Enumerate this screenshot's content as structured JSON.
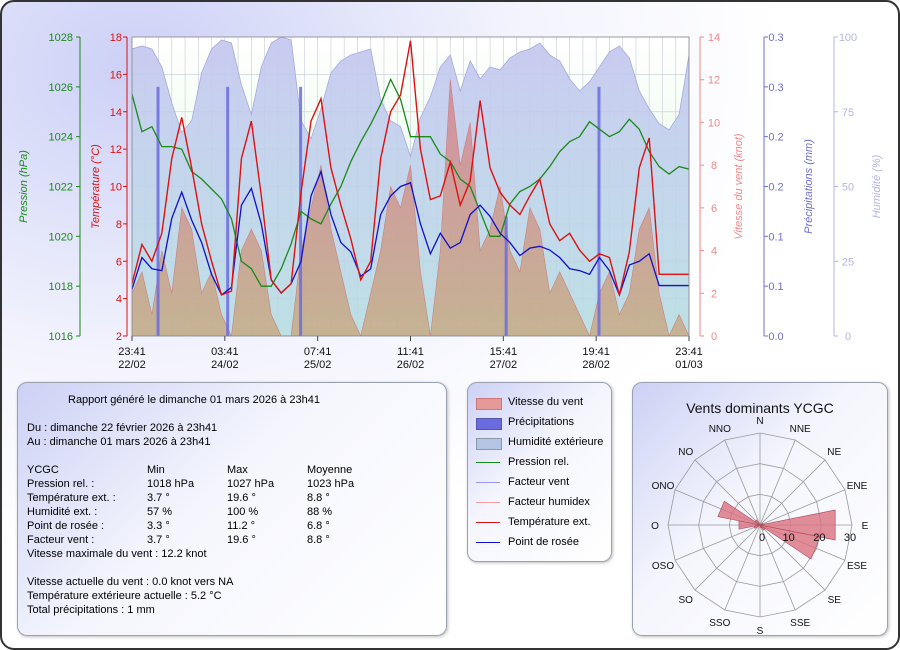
{
  "chart_data": [
    {
      "type": "line",
      "title": "",
      "xlabel": "",
      "time_range_hours": [
        0,
        168
      ],
      "x_ticks": [
        {
          "h": 0,
          "time": "23:41",
          "date": "22/02"
        },
        {
          "h": 28,
          "time": "03:41",
          "date": "24/02"
        },
        {
          "h": 56,
          "time": "07:41",
          "date": "25/02"
        },
        {
          "h": 84,
          "time": "11:41",
          "date": "26/02"
        },
        {
          "h": 112,
          "time": "15:41",
          "date": "27/02"
        },
        {
          "h": 140,
          "time": "19:41",
          "date": "28/02"
        },
        {
          "h": 168,
          "time": "23:41",
          "date": "01/03"
        }
      ],
      "axes": {
        "pressure": {
          "label": "Pression (hPa)",
          "ylim": [
            1016,
            1028
          ],
          "ticks": [
            1016,
            1018,
            1020,
            1022,
            1024,
            1026,
            1028
          ],
          "color": "#1a8a1a"
        },
        "temperature": {
          "label": "Température (°C)",
          "ylim": [
            2,
            18
          ],
          "ticks": [
            2,
            4,
            6,
            8,
            10,
            12,
            14,
            16,
            18
          ],
          "color": "#dd1111"
        },
        "wind": {
          "label": "Vitesse du vent (knot)",
          "ylim": [
            0,
            14
          ],
          "ticks": [
            0,
            2,
            4,
            6,
            8,
            10,
            12,
            14
          ],
          "color": "#ee8888"
        },
        "precip": {
          "label": "Précipitations (mm)",
          "ylim": [
            0,
            0.3
          ],
          "ticks": [
            "0.0",
            "0.1",
            "0.1",
            "0.2",
            "0.2",
            "0.3",
            "0.3"
          ],
          "color": "#6f6fd0"
        },
        "humidity": {
          "label": "Humidité (%)",
          "ylim": [
            0,
            100
          ],
          "ticks": [
            0,
            25,
            50,
            75,
            100
          ],
          "color": "#b4b4e4"
        }
      },
      "series": [
        {
          "name": "Température ext.",
          "axis": "temperature",
          "color": "#dd1111",
          "x": [
            0,
            3,
            6,
            9,
            12,
            15,
            18,
            21,
            24,
            27,
            30,
            33,
            36,
            39,
            42,
            45,
            48,
            51,
            54,
            57,
            60,
            63,
            66,
            69,
            72,
            75,
            78,
            81,
            84,
            87,
            90,
            93,
            96,
            99,
            102,
            105,
            108,
            111,
            114,
            117,
            120,
            123,
            126,
            129,
            132,
            135,
            138,
            141,
            144,
            147,
            150,
            153,
            156,
            159,
            162,
            165,
            168
          ],
          "values": [
            4.8,
            6.9,
            6.0,
            7.5,
            11.5,
            13.7,
            11.0,
            8.0,
            6.0,
            4.2,
            4.4,
            11.5,
            13.5,
            9.5,
            5.0,
            4.3,
            4.8,
            9.7,
            13.5,
            14.7,
            11.0,
            9.0,
            7.2,
            5.0,
            6.0,
            11.5,
            14.0,
            14.9,
            17.8,
            12.0,
            9.3,
            9.5,
            11.3,
            9.0,
            10.3,
            14.6,
            11.0,
            9.7,
            9.0,
            8.5,
            9.5,
            10.4,
            8.0,
            7.1,
            7.5,
            6.6,
            6.0,
            6.4,
            6.2,
            4.2,
            6.5,
            11.0,
            12.6,
            5.3,
            5.3,
            5.3,
            5.3
          ]
        },
        {
          "name": "Point de rosée",
          "axis": "temperature",
          "color": "#1010cc",
          "x": [
            0,
            3,
            6,
            9,
            12,
            15,
            18,
            21,
            24,
            27,
            30,
            33,
            36,
            39,
            42,
            45,
            48,
            51,
            54,
            57,
            60,
            63,
            66,
            69,
            72,
            75,
            78,
            81,
            84,
            87,
            90,
            93,
            96,
            99,
            102,
            105,
            108,
            111,
            114,
            117,
            120,
            123,
            126,
            129,
            132,
            135,
            138,
            141,
            144,
            147,
            150,
            153,
            156,
            159,
            162,
            165,
            168
          ],
          "values": [
            4.5,
            6.2,
            5.6,
            5.5,
            8.3,
            9.7,
            8.2,
            7.0,
            5.3,
            4.2,
            4.6,
            9.0,
            9.9,
            8.0,
            5.0,
            4.3,
            4.8,
            6.0,
            9.5,
            10.8,
            8.5,
            7.0,
            6.5,
            5.2,
            5.6,
            8.5,
            9.5,
            10.0,
            10.2,
            8.0,
            6.4,
            7.5,
            6.7,
            7.0,
            8.5,
            9.0,
            8.4,
            7.5,
            7.0,
            6.3,
            6.7,
            6.8,
            6.6,
            6.2,
            5.6,
            5.5,
            5.3,
            6.2,
            5.5,
            4.2,
            5.8,
            6.0,
            6.4,
            4.7,
            4.7,
            4.7,
            4.7
          ]
        },
        {
          "name": "Pression rel.",
          "axis": "pressure",
          "color": "#1a8a1a",
          "x": [
            0,
            3,
            6,
            9,
            12,
            15,
            18,
            21,
            24,
            27,
            30,
            33,
            36,
            39,
            42,
            45,
            48,
            51,
            54,
            57,
            60,
            63,
            66,
            69,
            72,
            75,
            78,
            81,
            84,
            87,
            90,
            93,
            96,
            99,
            102,
            105,
            108,
            111,
            114,
            117,
            120,
            123,
            126,
            129,
            132,
            135,
            138,
            141,
            144,
            147,
            150,
            153,
            156,
            159,
            162,
            165,
            168
          ],
          "values": [
            1025.7,
            1024.2,
            1024.4,
            1023.6,
            1023.6,
            1023.5,
            1022.6,
            1022.3,
            1021.9,
            1021.5,
            1020.7,
            1019.0,
            1018.7,
            1018.0,
            1018.0,
            1018.7,
            1019.7,
            1021.0,
            1020.7,
            1020.5,
            1021.3,
            1022.0,
            1023.0,
            1023.8,
            1024.5,
            1025.3,
            1026.3,
            1025.5,
            1024.0,
            1024.0,
            1024.0,
            1023.3,
            1023.0,
            1022.3,
            1022.0,
            1021.0,
            1020.0,
            1020.0,
            1021.3,
            1021.8,
            1022.0,
            1022.3,
            1022.8,
            1023.4,
            1023.8,
            1024.0,
            1024.6,
            1024.3,
            1024.0,
            1024.2,
            1024.7,
            1024.3,
            1023.4,
            1022.8,
            1022.5,
            1022.8,
            1022.7
          ]
        },
        {
          "name": "Humidité extérieure",
          "axis": "humidity",
          "color": "#b4b4e4",
          "x": [
            0,
            3,
            6,
            9,
            12,
            15,
            18,
            21,
            24,
            27,
            30,
            33,
            36,
            39,
            42,
            45,
            48,
            51,
            54,
            57,
            60,
            63,
            66,
            69,
            72,
            75,
            78,
            81,
            84,
            87,
            90,
            93,
            96,
            99,
            102,
            105,
            108,
            111,
            114,
            117,
            120,
            123,
            126,
            129,
            132,
            135,
            138,
            141,
            144,
            147,
            150,
            153,
            156,
            159,
            162,
            165,
            168
          ],
          "values": [
            96,
            97,
            96,
            90,
            78,
            68,
            72,
            88,
            96,
            99,
            98,
            84,
            74,
            90,
            98,
            100,
            99,
            72,
            66,
            76,
            88,
            92,
            94,
            95,
            96,
            79,
            72,
            70,
            60,
            73,
            80,
            90,
            94,
            82,
            92,
            86,
            90,
            89,
            93,
            95,
            96,
            98,
            94,
            92,
            86,
            82,
            85,
            90,
            95,
            97,
            93,
            82,
            76,
            71,
            69,
            74,
            94
          ]
        },
        {
          "name": "Vitesse du vent",
          "axis": "wind",
          "color": "#e69999",
          "x": [
            0,
            3,
            6,
            9,
            12,
            15,
            18,
            21,
            24,
            27,
            30,
            33,
            36,
            39,
            42,
            45,
            48,
            51,
            54,
            57,
            60,
            63,
            66,
            69,
            72,
            75,
            78,
            81,
            84,
            87,
            90,
            93,
            96,
            99,
            102,
            105,
            108,
            111,
            114,
            117,
            120,
            123,
            126,
            129,
            132,
            135,
            138,
            141,
            144,
            147,
            150,
            153,
            156,
            159,
            162,
            165,
            168
          ],
          "values": [
            2,
            3,
            1,
            4,
            2,
            6,
            5,
            2,
            3,
            1,
            0,
            4,
            5,
            4,
            1,
            0,
            0,
            4,
            6,
            8,
            5,
            3,
            1,
            0,
            2,
            4,
            7,
            6,
            8,
            3,
            0,
            4,
            12,
            8,
            10,
            4,
            5,
            7,
            4,
            3,
            6,
            5,
            2,
            3,
            2,
            1,
            0,
            2,
            3,
            1,
            2,
            5,
            6,
            2,
            0,
            1,
            0
          ]
        },
        {
          "name": "Précipitations",
          "axis": "precip",
          "color": "#6666dd",
          "x": [
            8,
            29,
            51,
            113,
            141
          ],
          "values": [
            0.25,
            0.25,
            0.25,
            0.12,
            0.25
          ]
        }
      ]
    },
    {
      "type": "polar-bar",
      "title": "Vents dominants YCGC",
      "directions": [
        "N",
        "NNE",
        "NE",
        "ENE",
        "E",
        "ESE",
        "SE",
        "SSE",
        "S",
        "SSO",
        "SO",
        "OSO",
        "O",
        "ONO",
        "NO",
        "NNO"
      ],
      "rlim": [
        0,
        30
      ],
      "r_ticks": [
        0,
        10,
        20,
        30
      ],
      "values": [
        0,
        0,
        0,
        1,
        25,
        20,
        2,
        1,
        0,
        0,
        0,
        2,
        7,
        14,
        2,
        0
      ]
    }
  ],
  "legend": {
    "items": [
      {
        "label": "Vitesse du vent",
        "kind": "swatch",
        "color": "#e69999"
      },
      {
        "label": "Précipitations",
        "kind": "swatch",
        "color": "#6b6be0"
      },
      {
        "label": "Humidité extérieure",
        "kind": "swatch",
        "color": "#b4c4e4"
      },
      {
        "label": "Pression rel.",
        "kind": "line",
        "color": "#1a8a1a"
      },
      {
        "label": "Facteur vent",
        "kind": "line",
        "color": "#9999ee"
      },
      {
        "label": "Facteur humidex",
        "kind": "line",
        "color": "#f0a0a0"
      },
      {
        "label": "Température ext.",
        "kind": "line",
        "color": "#dd1111"
      },
      {
        "label": "Point de rosée",
        "kind": "line",
        "color": "#1010cc"
      }
    ]
  },
  "report": {
    "generated": "Rapport généré le dimanche 01 mars 2026 à 23h41",
    "from": "Du : dimanche 22 février 2026 à 23h41",
    "to": "Au : dimanche 01 mars 2026 à 23h41",
    "header": {
      "station": "YCGC",
      "min": "Min",
      "max": "Max",
      "avg": "Moyenne"
    },
    "rows": [
      {
        "label": "Pression rel. :",
        "min": "1018 hPa",
        "max": "1027 hPa",
        "avg": "1023 hPa"
      },
      {
        "label": "Température ext. :",
        "min": "3.7 °",
        "max": "19.6 °",
        "avg": "8.8 °"
      },
      {
        "label": "Humidité ext. :",
        "min": "57 %",
        "max": "100 %",
        "avg": "88 %"
      },
      {
        "label": "Point de rosée :",
        "min": "3.3 °",
        "max": "11.2 °",
        "avg": "6.8 °"
      },
      {
        "label": "Facteur vent :",
        "min": "3.7 °",
        "max": "19.6 °",
        "avg": "8.8 °"
      }
    ],
    "max_wind": "Vitesse maximale du vent : 12.2 knot",
    "current_wind": "Vitesse actuelle du vent : 0.0 knot vers  NA",
    "current_temp": "Température extérieure actuelle :  5.2 °C",
    "total_precip": "Total précipitations :  1 mm"
  }
}
